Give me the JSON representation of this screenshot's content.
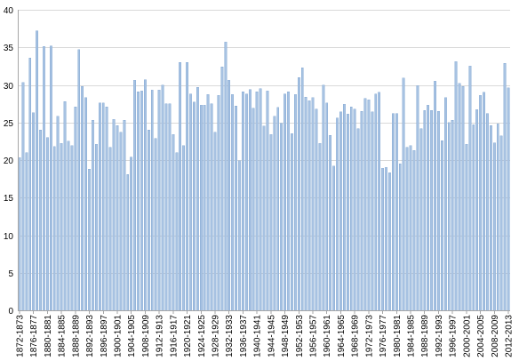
{
  "chart_data": {
    "type": "bar",
    "title": "",
    "xlabel": "",
    "ylabel": "",
    "ylim": [
      0,
      40
    ],
    "yticks": [
      0,
      5,
      10,
      15,
      20,
      25,
      30,
      35,
      40
    ],
    "grid": true,
    "legend": "none",
    "bar_color": "#a7c2e2",
    "bar_edge_color": "#7ba1d0",
    "first_season": "1872-1873",
    "last_season": "2012-2013",
    "label_every": 4,
    "values": [
      20.3,
      30.3,
      21.0,
      33.6,
      26.3,
      37.2,
      24.0,
      35.1,
      23.0,
      35.2,
      21.8,
      25.8,
      22.2,
      27.8,
      22.5,
      21.9,
      27.1,
      34.7,
      29.8,
      28.3,
      18.8,
      25.3,
      22.1,
      27.6,
      27.6,
      27.1,
      21.7,
      25.4,
      24.6,
      23.7,
      25.3,
      18.1,
      20.4,
      30.6,
      29.1,
      29.2,
      30.7,
      24.0,
      29.3,
      22.9,
      29.3,
      30.0,
      27.5,
      27.5,
      23.4,
      21.0,
      33.0,
      21.9,
      33.0,
      28.8,
      27.7,
      29.7,
      27.3,
      27.3,
      28.7,
      27.5,
      23.7,
      28.6,
      32.4,
      35.7,
      30.6,
      28.7,
      27.2,
      19.9,
      29.1,
      28.8,
      29.4,
      26.9,
      29.1,
      29.5,
      24.5,
      29.2,
      23.4,
      25.8,
      27.0,
      24.9,
      28.8,
      29.1,
      23.5,
      28.7,
      31.0,
      32.3,
      28.4,
      27.9,
      28.3,
      26.8,
      22.2,
      30.0,
      27.6,
      23.3,
      19.2,
      25.6,
      26.4,
      27.4,
      26.1,
      27.1,
      26.8,
      24.2,
      26.5,
      28.2,
      28.0,
      26.4,
      28.8,
      29.0,
      18.9,
      19.0,
      18.3,
      26.2,
      26.2,
      19.5,
      30.9,
      21.7,
      21.9,
      21.3,
      29.9,
      24.2,
      26.6,
      27.3,
      26.6,
      30.5,
      26.5,
      22.6,
      28.3,
      25.0,
      25.3,
      33.1,
      30.2,
      29.8,
      22.1,
      32.5,
      24.7,
      26.7,
      28.6,
      29.0,
      26.2,
      24.6,
      22.3,
      24.8,
      23.2,
      32.9,
      29.6
    ]
  }
}
